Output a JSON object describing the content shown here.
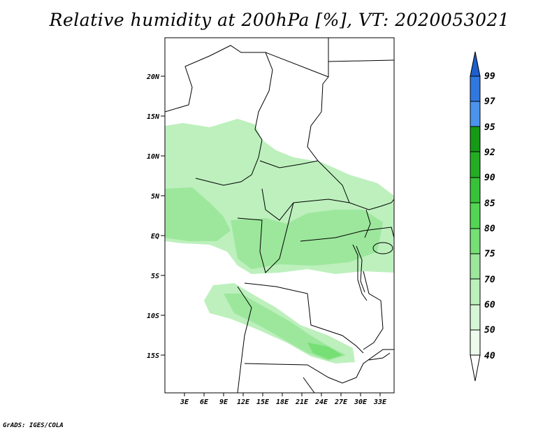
{
  "title": "Relative humidity at 200hPa [%], VT: 2020053021",
  "credit": "GrADS: IGES/COLA",
  "map": {
    "lat_labels": [
      "20N",
      "15N",
      "10N",
      "5N",
      "EQ",
      "5S",
      "10S",
      "15S"
    ],
    "lon_labels": [
      "3E",
      "6E",
      "9E",
      "12E",
      "15E",
      "18E",
      "21E",
      "24E",
      "27E",
      "30E",
      "33E"
    ],
    "lon_range": [
      0,
      35
    ],
    "lat_range": [
      -20,
      25
    ]
  },
  "colorbar": {
    "labels": [
      "99",
      "97",
      "95",
      "92",
      "90",
      "85",
      "80",
      "75",
      "70",
      "60",
      "50",
      "40"
    ],
    "colors": [
      "#1e5fcc",
      "#2f78e0",
      "#4a94ee",
      "#149a14",
      "#23ad23",
      "#37c337",
      "#52d552",
      "#76df76",
      "#9ce79c",
      "#bdf0bd",
      "#d7f6d7",
      "#edfbed"
    ]
  }
}
